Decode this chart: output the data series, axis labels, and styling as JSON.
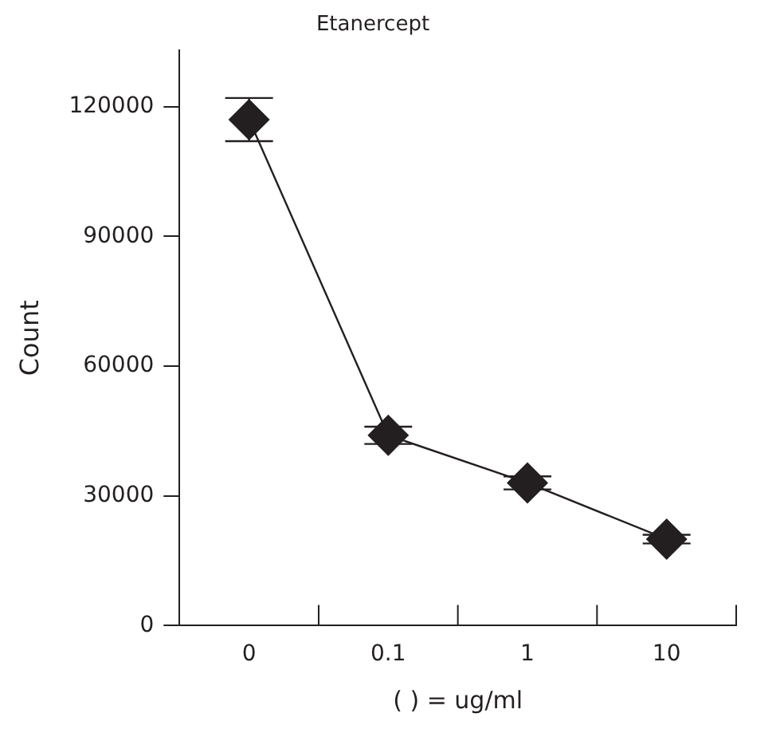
{
  "chart_data": {
    "type": "line",
    "title": "Etanercept",
    "xlabel": "( ) = ug/ml",
    "ylabel": "Count",
    "categories": [
      "0",
      "0.1",
      "1",
      "10"
    ],
    "series": [
      {
        "color": "#231f20",
        "values": [
          117000,
          44000,
          33000,
          20000
        ],
        "errors": [
          5000,
          2000,
          1500,
          1000
        ]
      }
    ],
    "ylim": [
      0,
      133000
    ],
    "yticks": [
      0,
      30000,
      60000,
      90000,
      120000
    ],
    "grid": false,
    "legend": false,
    "marker": "diamond",
    "line_style": "solid"
  }
}
